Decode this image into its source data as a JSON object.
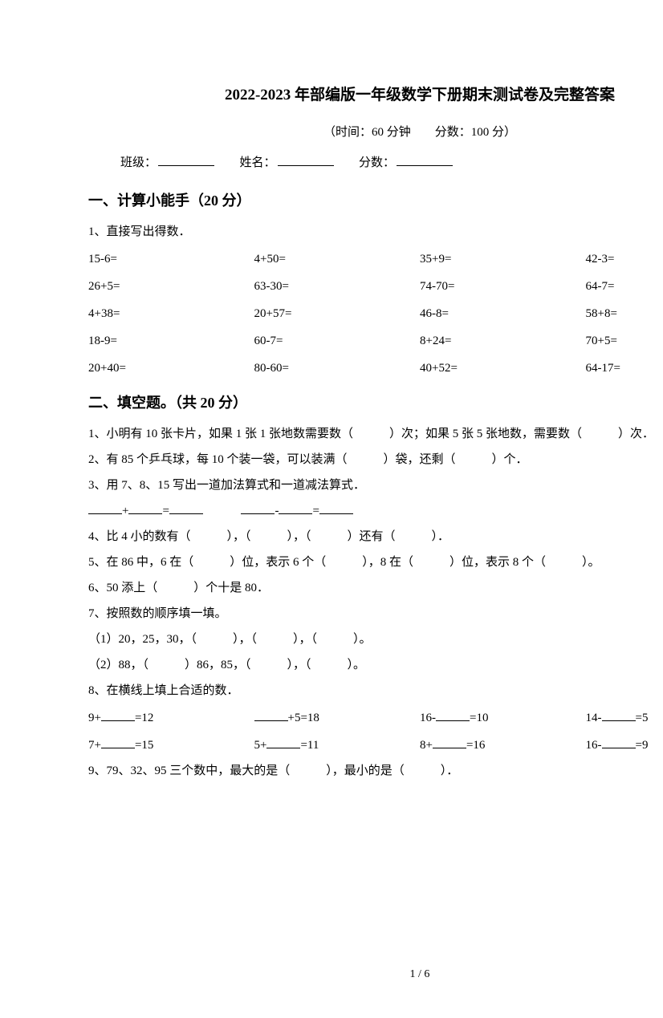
{
  "title": "2022-2023 年部编版一年级数学下册期末测试卷及完整答案",
  "timing": "（时间：60 分钟　　分数：100 分）",
  "info": {
    "class": "班级：",
    "name": "姓名：",
    "score": "分数："
  },
  "section1": {
    "heading": "一、计算小能手（20 分）",
    "q1_label": "1、直接写出得数．",
    "rows": [
      [
        "15-6=",
        "4+50=",
        "35+9=",
        "42-3="
      ],
      [
        "26+5=",
        "63-30=",
        "74-70=",
        "64-7="
      ],
      [
        "4+38=",
        "20+57=",
        "46-8=",
        "58+8="
      ],
      [
        "18-9=",
        "60-7=",
        "8+24=",
        "70+5="
      ],
      [
        "20+40=",
        "80-60=",
        "40+52=",
        "64-17="
      ]
    ]
  },
  "section2": {
    "heading": "二、填空题。（共 20 分）",
    "q1": "1、小明有 10 张卡片，如果 1 张 1 张地数需要数（　　　）次；如果 5 张 5 张地数，需要数（　　　）次．",
    "q2": "2、有 85 个乒乓球，每 10 个装一袋，可以装满（　　　）袋，还剩（　　　）个．",
    "q3": "3、用 7、8、15 写出一道加法算式和一道减法算式．",
    "q4": "4、比 4 小的数有（　　　），（　　　），（　　　）还有（　　　）．",
    "q5": "5、在 86 中，6 在（　　　）位，表示 6 个（　　　），8 在（　　　）位，表示 8 个（　　　）。",
    "q6": "6、50 添上（　　　）个十是 80．",
    "q7": "7、按照数的顺序填一填。",
    "q7_1": "（1）20，25，30，（　　　），（　　　），（　　　）。",
    "q7_2": "（2）88，（　　　）86，85，（　　　），（　　　）。",
    "q8": "8、在横线上填上合适的数．",
    "q8_rows": [
      [
        "9+",
        "=12",
        "",
        "+5=18",
        "16-",
        "=10",
        "14-",
        "=5"
      ],
      [
        "7+",
        "=15",
        "5+",
        "=11",
        "8+",
        "=16",
        "16-",
        "=9"
      ]
    ],
    "q9": "9、79、32、95 三个数中，最大的是（　　　），最小的是（　　　）．"
  },
  "page_footer": "1 / 6"
}
